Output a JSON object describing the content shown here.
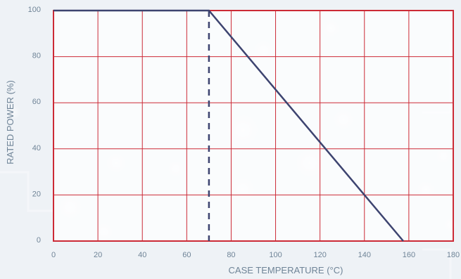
{
  "chart_data": {
    "type": "line",
    "title": "",
    "xlabel": "CASE TEMPERATURE (°C)",
    "ylabel": "RATED POWER (%)",
    "xlim": [
      0,
      180
    ],
    "ylim": [
      0,
      100
    ],
    "x_ticks": [
      "0",
      "20",
      "40",
      "60",
      "80",
      "100",
      "120",
      "140",
      "160",
      "180"
    ],
    "y_ticks": [
      "0",
      "20",
      "40",
      "60",
      "80",
      "100"
    ],
    "grid": true,
    "series": [
      {
        "x": [
          0,
          70,
          157.5
        ],
        "y": [
          100,
          100,
          0
        ],
        "color": "#3d4470"
      }
    ],
    "reference_lines": [
      {
        "x": 70,
        "y_range": [
          0,
          100
        ],
        "style": "dashed",
        "color": "#3d4470"
      }
    ],
    "colors": {
      "grid": "#cc2a36",
      "background": "#ffffff",
      "text": "#6f8497"
    }
  }
}
